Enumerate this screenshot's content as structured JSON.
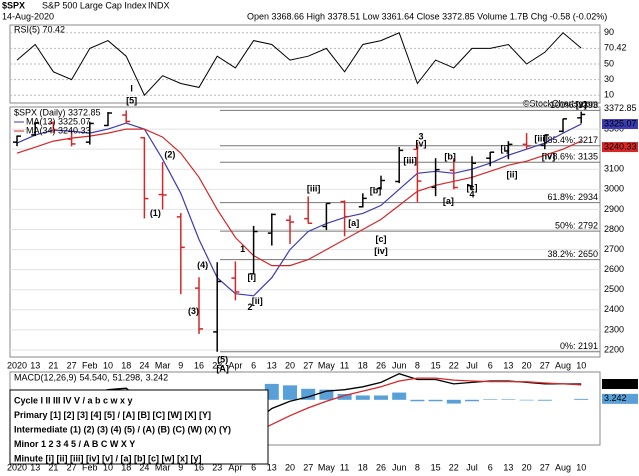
{
  "header": {
    "symbol": "$SPX",
    "name": "S&P 500 Large Cap Index",
    "exchange": "INDX",
    "date": "14-Aug-2020",
    "stats": "Open 3368.66 High 3378.51 Low 3361.64 Close 3372.85 Volume 1.7B Chg -0.58 (-0.02%)",
    "credit": "©StockCharts.com"
  },
  "chart_data": [
    {
      "type": "line",
      "legend": "RSI(5) 70.42",
      "ylim": [
        0,
        100
      ],
      "yticks": [
        10,
        30,
        50,
        70,
        90
      ],
      "grid": true,
      "series": [
        {
          "name": "RSI(5)",
          "color": "#000000",
          "values": [
            55,
            75,
            40,
            30,
            70,
            80,
            60,
            10,
            35,
            25,
            20,
            60,
            45,
            80,
            75,
            55,
            60,
            70,
            40,
            75,
            80,
            90,
            25,
            55,
            45,
            70,
            70,
            75,
            50,
            65,
            90,
            70.42
          ]
        }
      ]
    },
    {
      "type": "ohlc",
      "ylim": [
        2165,
        3410
      ],
      "yticks": [
        2200,
        2300,
        2400,
        2500,
        2600,
        2700,
        2800,
        2900,
        3000,
        3100,
        3200,
        3300
      ],
      "grid": true,
      "categories": [
        "2020",
        "13",
        "21",
        "27",
        "Feb",
        "10",
        "18",
        "24",
        "Mar",
        "9",
        "16",
        "23",
        "Apr",
        "6",
        "13",
        "20",
        "27",
        "May",
        "11",
        "18",
        "26",
        "Jun",
        "8",
        "15",
        "22",
        "Jul",
        "6",
        "13",
        "20",
        "27",
        "Aug",
        "10"
      ],
      "ohlc": {
        "name": "$SPX (Daily) 3372.85",
        "up_color": "#000000",
        "down_color": "#d62728",
        "open": [
          3235,
          3271,
          3330,
          3250,
          3235,
          3318,
          3370,
          3257,
          2974,
          2863,
          2508,
          2290,
          2558,
          2579,
          2782,
          2846,
          2854,
          2815,
          2939,
          2913,
          3004,
          3039,
          3199,
          3010,
          3095,
          3018,
          3155,
          3191,
          3224,
          3219,
          3289,
          3356
        ],
        "high": [
          3268,
          3330,
          3338,
          3285,
          3337,
          3385,
          3393,
          3260,
          3136,
          2882,
          2562,
          2637,
          2641,
          2818,
          2880,
          2870,
          2965,
          2930,
          2945,
          2980,
          3068,
          3211,
          3233,
          3155,
          3155,
          3165,
          3186,
          3240,
          3280,
          3272,
          3352,
          3387
        ],
        "low": [
          3215,
          3265,
          3280,
          3214,
          3223,
          3315,
          3328,
          2855,
          2900,
          2478,
          2280,
          2191,
          2447,
          2579,
          2720,
          2727,
          2830,
          2797,
          2766,
          2910,
          2999,
          3031,
          2936,
          2966,
          3000,
          2999,
          3115,
          3150,
          3200,
          3200,
          3284,
          3328
        ],
        "close": [
          3265,
          3330,
          3295,
          3226,
          3328,
          3380,
          3338,
          2954,
          2972,
          2711,
          2305,
          2541,
          2489,
          2790,
          2875,
          2837,
          2831,
          2930,
          2864,
          2955,
          3044,
          3194,
          3041,
          3098,
          3009,
          3130,
          3185,
          3224,
          3216,
          3271,
          3351,
          3372.85
        ]
      },
      "series": [
        {
          "name": "MA(13) 3325.07",
          "color": "#3b3bb3",
          "values": [
            3230,
            3270,
            3295,
            3290,
            3280,
            3300,
            3330,
            3300,
            3150,
            2980,
            2750,
            2560,
            2480,
            2470,
            2560,
            2700,
            2790,
            2830,
            2860,
            2880,
            2920,
            3000,
            3080,
            3090,
            3080,
            3100,
            3130,
            3170,
            3200,
            3230,
            3280,
            3325.07
          ]
        },
        {
          "name": "MA(34) 3240.33",
          "color": "#d62728",
          "values": [
            3180,
            3210,
            3240,
            3255,
            3265,
            3280,
            3300,
            3300,
            3260,
            3180,
            3060,
            2900,
            2760,
            2670,
            2620,
            2620,
            2650,
            2700,
            2750,
            2800,
            2850,
            2920,
            2990,
            3020,
            3040,
            3060,
            3090,
            3120,
            3140,
            3170,
            3200,
            3240.33
          ]
        }
      ],
      "fib_levels": [
        {
          "label": "100%: 3393",
          "value": 3393
        },
        {
          "label": "85.4%: 3217",
          "value": 3217
        },
        {
          "label": "78.6%: 3135",
          "value": 3135
        },
        {
          "label": "61.8%: 2934",
          "value": 2934
        },
        {
          "label": "50%: 2792",
          "value": 2792
        },
        {
          "label": "38.2%: 2650",
          "value": 2650
        },
        {
          "label": "0%: 2191",
          "value": 2191
        }
      ],
      "annotations": [
        {
          "text": "[5]",
          "i": 6.3,
          "y": 3440,
          "color": "#000000"
        },
        {
          "text": "I",
          "i": 6.3,
          "y": 3500,
          "color": "#0000cc"
        },
        {
          "text": "(1)",
          "i": 7.6,
          "y": 2880,
          "color": "#7b2c8c"
        },
        {
          "text": "(2)",
          "i": 8.4,
          "y": 3170,
          "color": "#7b2c8c"
        },
        {
          "text": "(3)",
          "i": 9.7,
          "y": 2390,
          "color": "#7b2c8c"
        },
        {
          "text": "(4)",
          "i": 10.2,
          "y": 2620,
          "color": "#7b2c8c"
        },
        {
          "text": "(5)",
          "i": 11.3,
          "y": 2150,
          "color": "#7b2c8c"
        },
        {
          "text": "[A]",
          "i": 11.3,
          "y": 2105,
          "color": "#000000"
        },
        {
          "text": "1",
          "i": 12.4,
          "y": 2700,
          "color": "#1f3a93"
        },
        {
          "text": "2",
          "i": 12.8,
          "y": 2410,
          "color": "#1f3a93"
        },
        {
          "text": "3",
          "i": 22.2,
          "y": 3260,
          "color": "#1f3a93"
        },
        {
          "text": "4",
          "i": 25.0,
          "y": 2970,
          "color": "#1f3a93"
        },
        {
          "text": "[i]",
          "i": 12.9,
          "y": 2560,
          "color": "#2e7d32"
        },
        {
          "text": "[ii]",
          "i": 13.2,
          "y": 2440,
          "color": "#2e7d32"
        },
        {
          "text": "[iii]",
          "i": 16.3,
          "y": 3000,
          "color": "#2e7d32"
        },
        {
          "text": "[a]",
          "i": 18.5,
          "y": 2830,
          "color": "#2e7d32"
        },
        {
          "text": "[b]",
          "i": 19.7,
          "y": 2990,
          "color": "#2e7d32"
        },
        {
          "text": "[c]",
          "i": 20.0,
          "y": 2750,
          "color": "#2e7d32"
        },
        {
          "text": "[iv]",
          "i": 20.0,
          "y": 2690,
          "color": "#2e7d32"
        },
        {
          "text": "[v]",
          "i": 22.2,
          "y": 3225,
          "color": "#000000"
        },
        {
          "text": "[iii]",
          "i": 21.6,
          "y": 3140,
          "color": "#2e7d32"
        },
        {
          "text": "[b]",
          "i": 23.8,
          "y": 3160,
          "color": "#2e7d32"
        },
        {
          "text": "[a]",
          "i": 23.7,
          "y": 2940,
          "color": "#2e7d32"
        },
        {
          "text": "[c]",
          "i": 25.0,
          "y": 3005,
          "color": "#2e7d32"
        },
        {
          "text": "[i]",
          "i": 26.8,
          "y": 3200,
          "color": "#2e7d32"
        },
        {
          "text": "[ii]",
          "i": 27.2,
          "y": 3070,
          "color": "#2e7d32"
        },
        {
          "text": "[iii]",
          "i": 28.8,
          "y": 3250,
          "color": "#2e7d32"
        },
        {
          "text": "[iv]",
          "i": 29.2,
          "y": 3160,
          "color": "#2e7d32"
        },
        {
          "text": "[v]",
          "i": 31.0,
          "y": 3420,
          "color": "#2e7d32"
        }
      ]
    },
    {
      "type": "macd",
      "ylim": [
        -156,
        96
      ],
      "legend": [
        "MACD(12,26,9)",
        "54.540,",
        "51.298,",
        "3.242"
      ],
      "series": [
        {
          "name": "MACD",
          "color": "#000000",
          "values": [
            10,
            20,
            25,
            10,
            20,
            35,
            40,
            -10,
            -50,
            -100,
            -140,
            -145,
            -125,
            -80,
            -30,
            -5,
            10,
            30,
            35,
            45,
            60,
            90,
            70,
            70,
            55,
            60,
            65,
            65,
            60,
            55,
            55,
            54.54
          ],
          "value_labels": [
            null,
            null,
            null,
            null,
            null,
            null,
            null,
            null,
            null,
            null,
            null,
            null,
            null,
            null,
            null,
            null,
            null,
            null,
            null,
            null,
            null,
            null,
            null,
            null,
            null,
            null,
            null,
            null,
            null,
            null,
            null,
            "54.540"
          ]
        },
        {
          "name": "Signal",
          "color": "#d62728",
          "values": [
            5,
            12,
            18,
            18,
            18,
            25,
            33,
            25,
            5,
            -30,
            -75,
            -110,
            -125,
            -115,
            -85,
            -55,
            -28,
            -5,
            15,
            30,
            45,
            65,
            75,
            75,
            68,
            65,
            63,
            63,
            62,
            58,
            55,
            51.298
          ]
        },
        {
          "name": "Histogram",
          "color": "#5aa0d8",
          "values": [
            5,
            8,
            7,
            -8,
            2,
            10,
            7,
            -35,
            -55,
            -70,
            -65,
            -35,
            0,
            35,
            55,
            50,
            38,
            35,
            20,
            15,
            15,
            25,
            -5,
            -5,
            -13,
            -5,
            2,
            2,
            -2,
            -3,
            0,
            3.242
          ],
          "value_labels": [
            null,
            null,
            null,
            null,
            null,
            null,
            null,
            null,
            null,
            null,
            null,
            null,
            null,
            null,
            null,
            null,
            null,
            null,
            null,
            null,
            null,
            null,
            null,
            null,
            null,
            null,
            null,
            null,
            null,
            null,
            null,
            "3.242"
          ]
        }
      ]
    }
  ],
  "legend_box": [
    {
      "text": "Cycle I II III IV V / a b c w x y",
      "color": "#0000cc"
    },
    {
      "text": "Primary [1] [2] [3] [4] [5] / [A] [B] [C] [W] [X] [Y]",
      "color": "#000000"
    },
    {
      "text": "Intermediate (1) (2) (3) (4) (5) / (A) (B) (C) (W) (X) (Y)",
      "color": "#7b2c8c"
    },
    {
      "text": "Minor 1 2 3 4 5 / A B C W X Y",
      "color": "#1f3a93"
    },
    {
      "text": "Minute [i] [ii] [iii] [iv] [v] / [a] [b] [c] [w] [x] [y]",
      "color": "#2e7d32"
    }
  ]
}
